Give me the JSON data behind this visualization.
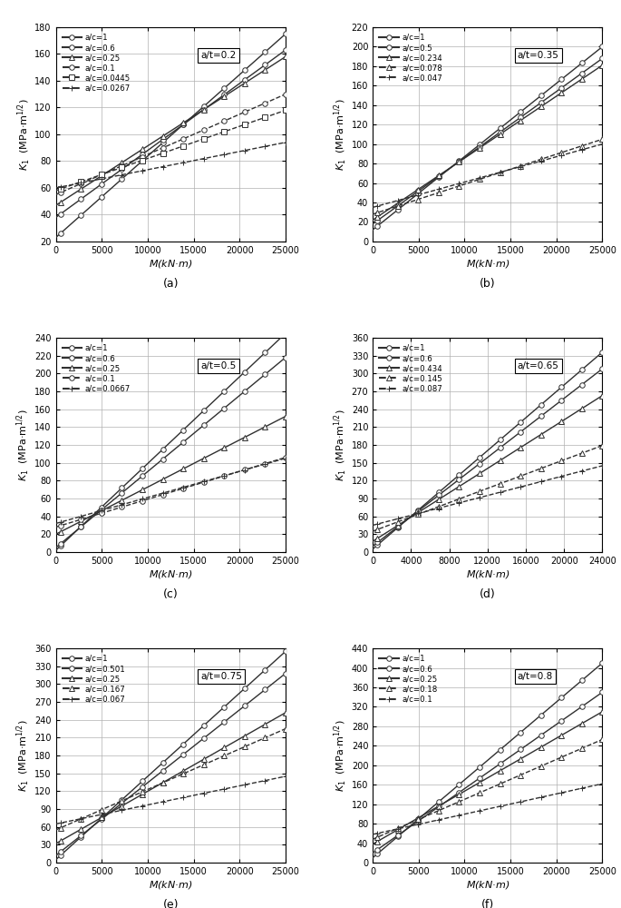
{
  "subplots": [
    {
      "label": "(a)",
      "at_label": "a/t=0.2",
      "ylim": [
        20,
        180
      ],
      "yticks": [
        20,
        40,
        60,
        80,
        100,
        120,
        140,
        160,
        180
      ],
      "xlim": [
        0,
        25000
      ],
      "xticks": [
        0,
        5000,
        10000,
        15000,
        20000,
        25000
      ],
      "series": [
        {
          "name": "a/c=1",
          "y0": 23,
          "y1": 175,
          "marker": "o",
          "ls": "-"
        },
        {
          "name": "a/c=0.6",
          "y0": 38,
          "y1": 163,
          "marker": "o",
          "ls": "-"
        },
        {
          "name": "a/c=0.25",
          "y0": 47,
          "y1": 158,
          "marker": "^",
          "ls": "-"
        },
        {
          "name": "a/c=0.1",
          "y0": 55,
          "y1": 130,
          "marker": "o",
          "ls": "--"
        },
        {
          "name": "a/c=0.0445",
          "y0": 58,
          "y1": 118,
          "marker": "s",
          "ls": "--"
        },
        {
          "name": "a/c=0.0267",
          "y0": 60,
          "y1": 94,
          "marker": "+",
          "ls": "--"
        }
      ]
    },
    {
      "label": "(b)",
      "at_label": "a/t=0.35",
      "ylim": [
        0,
        220
      ],
      "yticks": [
        0,
        20,
        40,
        60,
        80,
        100,
        120,
        140,
        160,
        180,
        200,
        220
      ],
      "xlim": [
        0,
        25000
      ],
      "xticks": [
        0,
        5000,
        10000,
        15000,
        20000,
        25000
      ],
      "series": [
        {
          "name": "a/c=1",
          "y0": 12,
          "y1": 200,
          "marker": "o",
          "ls": "-"
        },
        {
          "name": "a/c=0.5",
          "y0": 18,
          "y1": 188,
          "marker": "o",
          "ls": "-"
        },
        {
          "name": "a/c=0.234",
          "y0": 22,
          "y1": 181,
          "marker": "^",
          "ls": "-"
        },
        {
          "name": "a/c=0.078",
          "y0": 28,
          "y1": 105,
          "marker": "^",
          "ls": "--"
        },
        {
          "name": "a/c=0.047",
          "y0": 35,
          "y1": 100,
          "marker": "+",
          "ls": "--"
        }
      ]
    },
    {
      "label": "(c)",
      "at_label": "a/t=0.5",
      "ylim": [
        0,
        240
      ],
      "yticks": [
        0,
        20,
        40,
        60,
        80,
        100,
        120,
        140,
        160,
        180,
        200,
        220,
        240
      ],
      "xlim": [
        0,
        25000
      ],
      "xticks": [
        0,
        5000,
        10000,
        15000,
        20000,
        25000
      ],
      "series": [
        {
          "name": "a/c=1",
          "y0": 2,
          "y1": 245,
          "marker": "o",
          "ls": "-"
        },
        {
          "name": "a/c=0.6",
          "y0": 5,
          "y1": 218,
          "marker": "o",
          "ls": "-"
        },
        {
          "name": "a/c=0.25",
          "y0": 20,
          "y1": 152,
          "marker": "^",
          "ls": "-"
        },
        {
          "name": "a/c=0.1",
          "y0": 28,
          "y1": 106,
          "marker": "o",
          "ls": "--"
        },
        {
          "name": "a/c=0.0667",
          "y0": 32,
          "y1": 105,
          "marker": "+",
          "ls": "--"
        }
      ]
    },
    {
      "label": "(d)",
      "at_label": "a/t=0.65",
      "ylim": [
        0,
        360
      ],
      "yticks": [
        0,
        30,
        60,
        90,
        120,
        150,
        180,
        210,
        240,
        270,
        300,
        330,
        360
      ],
      "xlim": [
        0,
        24000
      ],
      "xticks": [
        0,
        4000,
        8000,
        12000,
        16000,
        20000,
        24000
      ],
      "series": [
        {
          "name": "a/c=1",
          "y0": 5,
          "y1": 336,
          "marker": "o",
          "ls": "-"
        },
        {
          "name": "a/c=0.6",
          "y0": 10,
          "y1": 308,
          "marker": "o",
          "ls": "-"
        },
        {
          "name": "a/c=0.434",
          "y0": 18,
          "y1": 263,
          "marker": "^",
          "ls": "-"
        },
        {
          "name": "a/c=0.145",
          "y0": 35,
          "y1": 179,
          "marker": "^",
          "ls": "--"
        },
        {
          "name": "a/c=0.087",
          "y0": 45,
          "y1": 145,
          "marker": "+",
          "ls": "--"
        }
      ]
    },
    {
      "label": "(e)",
      "at_label": "a/t=0.75",
      "ylim": [
        0,
        360
      ],
      "yticks": [
        0,
        30,
        60,
        90,
        120,
        150,
        180,
        210,
        240,
        270,
        300,
        330,
        360
      ],
      "xlim": [
        0,
        25000
      ],
      "xticks": [
        0,
        5000,
        10000,
        15000,
        20000,
        25000
      ],
      "series": [
        {
          "name": "a/c=1",
          "y0": 5,
          "y1": 355,
          "marker": "o",
          "ls": "-"
        },
        {
          "name": "a/c=0.501",
          "y0": 12,
          "y1": 318,
          "marker": "o",
          "ls": "-"
        },
        {
          "name": "a/c=0.25",
          "y0": 32,
          "y1": 252,
          "marker": "^",
          "ls": "-"
        },
        {
          "name": "a/c=0.167",
          "y0": 55,
          "y1": 225,
          "marker": "^",
          "ls": "--"
        },
        {
          "name": "a/c=0.067",
          "y0": 65,
          "y1": 145,
          "marker": "+",
          "ls": "--"
        }
      ]
    },
    {
      "label": "(f)",
      "at_label": "a/t=0.8",
      "ylim": [
        0,
        440
      ],
      "yticks": [
        0,
        40,
        80,
        120,
        160,
        200,
        240,
        280,
        320,
        360,
        400,
        440
      ],
      "xlim": [
        0,
        25000
      ],
      "xticks": [
        0,
        5000,
        10000,
        15000,
        20000,
        25000
      ],
      "series": [
        {
          "name": "a/c=1",
          "y0": 10,
          "y1": 410,
          "marker": "o",
          "ls": "-"
        },
        {
          "name": "a/c=0.6",
          "y0": 20,
          "y1": 350,
          "marker": "o",
          "ls": "-"
        },
        {
          "name": "a/c=0.25",
          "y0": 38,
          "y1": 310,
          "marker": "^",
          "ls": "-"
        },
        {
          "name": "a/c=0.18",
          "y0": 48,
          "y1": 253,
          "marker": "^",
          "ls": "--"
        },
        {
          "name": "a/c=0.1",
          "y0": 58,
          "y1": 162,
          "marker": "+",
          "ls": "--"
        }
      ]
    }
  ],
  "ylabel": "$K_1$  (MPa·m$^{1/2}$)",
  "xlabel": "$M$(kN·m)",
  "grid_color": "#b0b0b0",
  "bg_color": "#ffffff",
  "line_color": "#303030",
  "marker_size": 4,
  "linewidth": 1.0
}
